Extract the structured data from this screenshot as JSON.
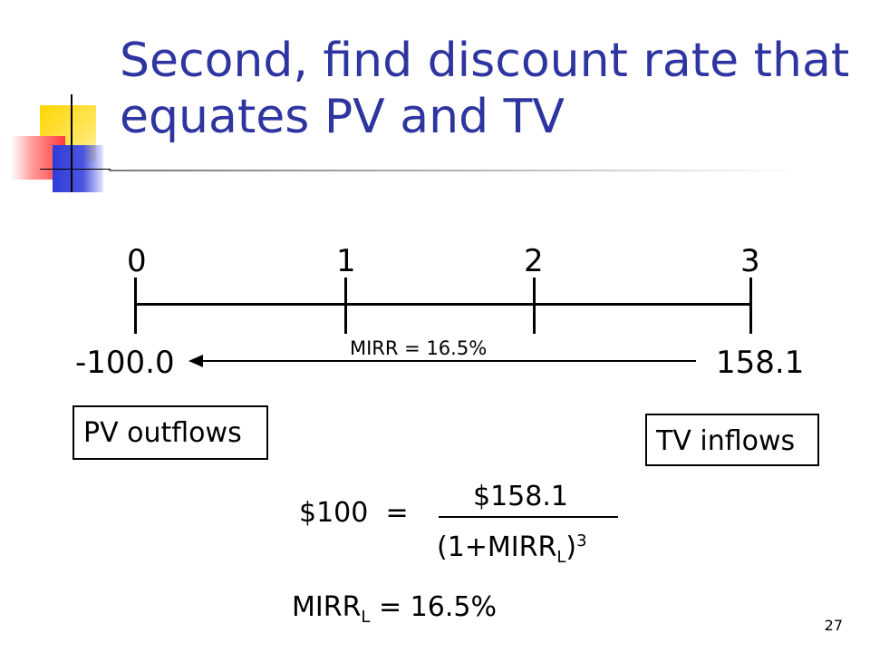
{
  "slide": {
    "title_line1": "Second, find discount rate that",
    "title_line2": "equates PV and TV",
    "page_number": "27",
    "accent_color": "#2f35a0"
  },
  "timeline": {
    "periods": [
      "0",
      "1",
      "2",
      "3"
    ],
    "start_value": "-100.0",
    "end_value": "158.1",
    "rate_label": "MIRR = 16.5%"
  },
  "boxes": {
    "pv_outflows": "PV outflows",
    "tv_inflows": "TV inflows"
  },
  "equation": {
    "lhs": "$100",
    "equals": "=",
    "numerator": "$158.1",
    "denominator_prefix": "(1+MIRR",
    "denominator_sub": "L",
    "denominator_close": ")",
    "denominator_exp": "3"
  },
  "result": {
    "prefix": "MIRR",
    "sub": "L",
    "suffix": " = 16.5%"
  }
}
